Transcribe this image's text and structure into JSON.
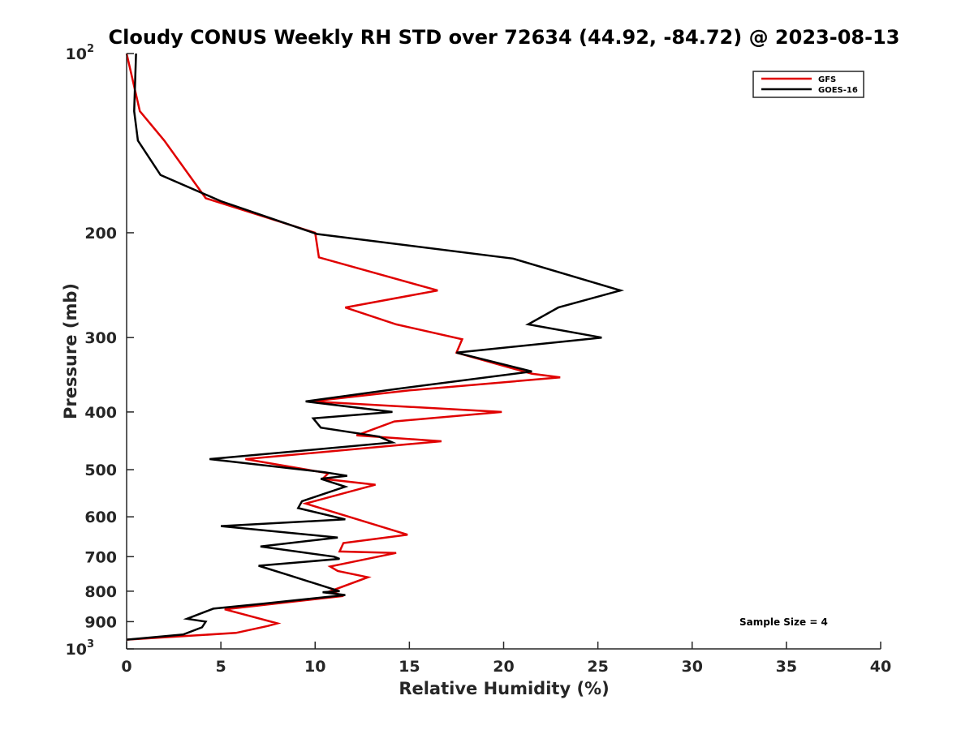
{
  "chart_data": {
    "type": "line",
    "title": "Cloudy CONUS Weekly RH STD over 72634 (44.92, -84.72) @ 2023-08-13",
    "xlabel": "Relative Humidity (%)",
    "ylabel": "Pressure (mb)",
    "xlim": [
      0,
      40
    ],
    "ylim": [
      100,
      1000
    ],
    "y_scale": "log",
    "y_reversed": true,
    "grid": false,
    "legend_position": "top-right",
    "x_ticks": [
      0,
      5,
      10,
      15,
      20,
      25,
      30,
      35,
      40
    ],
    "y_ticks": [
      {
        "value": 100,
        "label": "10",
        "sup": "2"
      },
      {
        "value": 200,
        "label": "200",
        "sup": ""
      },
      {
        "value": 300,
        "label": "300",
        "sup": ""
      },
      {
        "value": 400,
        "label": "400",
        "sup": ""
      },
      {
        "value": 500,
        "label": "500",
        "sup": ""
      },
      {
        "value": 600,
        "label": "600",
        "sup": ""
      },
      {
        "value": 700,
        "label": "700",
        "sup": ""
      },
      {
        "value": 800,
        "label": "800",
        "sup": ""
      },
      {
        "value": 900,
        "label": "900",
        "sup": ""
      },
      {
        "value": 1000,
        "label": "10",
        "sup": "3"
      }
    ],
    "series": [
      {
        "name": "GFS",
        "color": "#e00000",
        "points": [
          [
            0.0,
            100
          ],
          [
            0.7,
            125
          ],
          [
            2.0,
            140
          ],
          [
            4.2,
            175
          ],
          [
            10.0,
            200
          ],
          [
            10.2,
            220
          ],
          [
            16.5,
            250
          ],
          [
            11.6,
            267
          ],
          [
            14.3,
            285
          ],
          [
            17.8,
            302
          ],
          [
            17.5,
            318
          ],
          [
            21.5,
            345
          ],
          [
            23.0,
            350
          ],
          [
            15.0,
            368
          ],
          [
            9.8,
            384
          ],
          [
            19.9,
            400
          ],
          [
            14.2,
            415
          ],
          [
            12.2,
            438
          ],
          [
            16.7,
            448
          ],
          [
            6.3,
            480
          ],
          [
            10.7,
            507
          ],
          [
            10.4,
            518
          ],
          [
            13.2,
            530
          ],
          [
            9.5,
            570
          ],
          [
            14.9,
            643
          ],
          [
            11.5,
            664
          ],
          [
            11.3,
            686
          ],
          [
            14.3,
            690
          ],
          [
            10.8,
            727
          ],
          [
            11.2,
            740
          ],
          [
            12.8,
            758
          ],
          [
            10.8,
            800
          ],
          [
            11.5,
            815
          ],
          [
            5.2,
            858
          ],
          [
            8.0,
            906
          ],
          [
            7.5,
            915
          ],
          [
            5.8,
            940
          ],
          [
            0.0,
            965
          ]
        ]
      },
      {
        "name": "GOES-16",
        "color": "#000000",
        "points": [
          [
            0.5,
            100
          ],
          [
            0.4,
            125
          ],
          [
            0.6,
            140
          ],
          [
            1.8,
            160
          ],
          [
            5.0,
            177
          ],
          [
            9.5,
            198
          ],
          [
            10.1,
            201
          ],
          [
            20.5,
            221
          ],
          [
            26.2,
            250
          ],
          [
            22.9,
            267
          ],
          [
            21.3,
            285
          ],
          [
            25.2,
            300
          ],
          [
            17.5,
            318
          ],
          [
            21.5,
            342
          ],
          [
            14.3,
            366
          ],
          [
            9.5,
            384
          ],
          [
            14.1,
            400
          ],
          [
            9.9,
            410
          ],
          [
            10.3,
            425
          ],
          [
            13.4,
            440
          ],
          [
            14.1,
            450
          ],
          [
            4.4,
            480
          ],
          [
            10.5,
            505
          ],
          [
            11.7,
            512
          ],
          [
            10.3,
            518
          ],
          [
            11.6,
            534
          ],
          [
            9.3,
            565
          ],
          [
            9.1,
            580
          ],
          [
            11.6,
            606
          ],
          [
            5.0,
            622
          ],
          [
            11.2,
            650
          ],
          [
            7.1,
            673
          ],
          [
            11.0,
            700
          ],
          [
            11.3,
            706
          ],
          [
            7.0,
            725
          ],
          [
            8.6,
            752
          ],
          [
            11.3,
            800
          ],
          [
            10.4,
            803
          ],
          [
            11.6,
            812
          ],
          [
            7.2,
            840
          ],
          [
            4.6,
            856
          ],
          [
            3.2,
            890
          ],
          [
            4.2,
            900
          ],
          [
            4.0,
            920
          ],
          [
            3.0,
            946
          ],
          [
            0.0,
            965
          ]
        ]
      }
    ],
    "annotations": [
      "Sample Size = 4"
    ]
  }
}
